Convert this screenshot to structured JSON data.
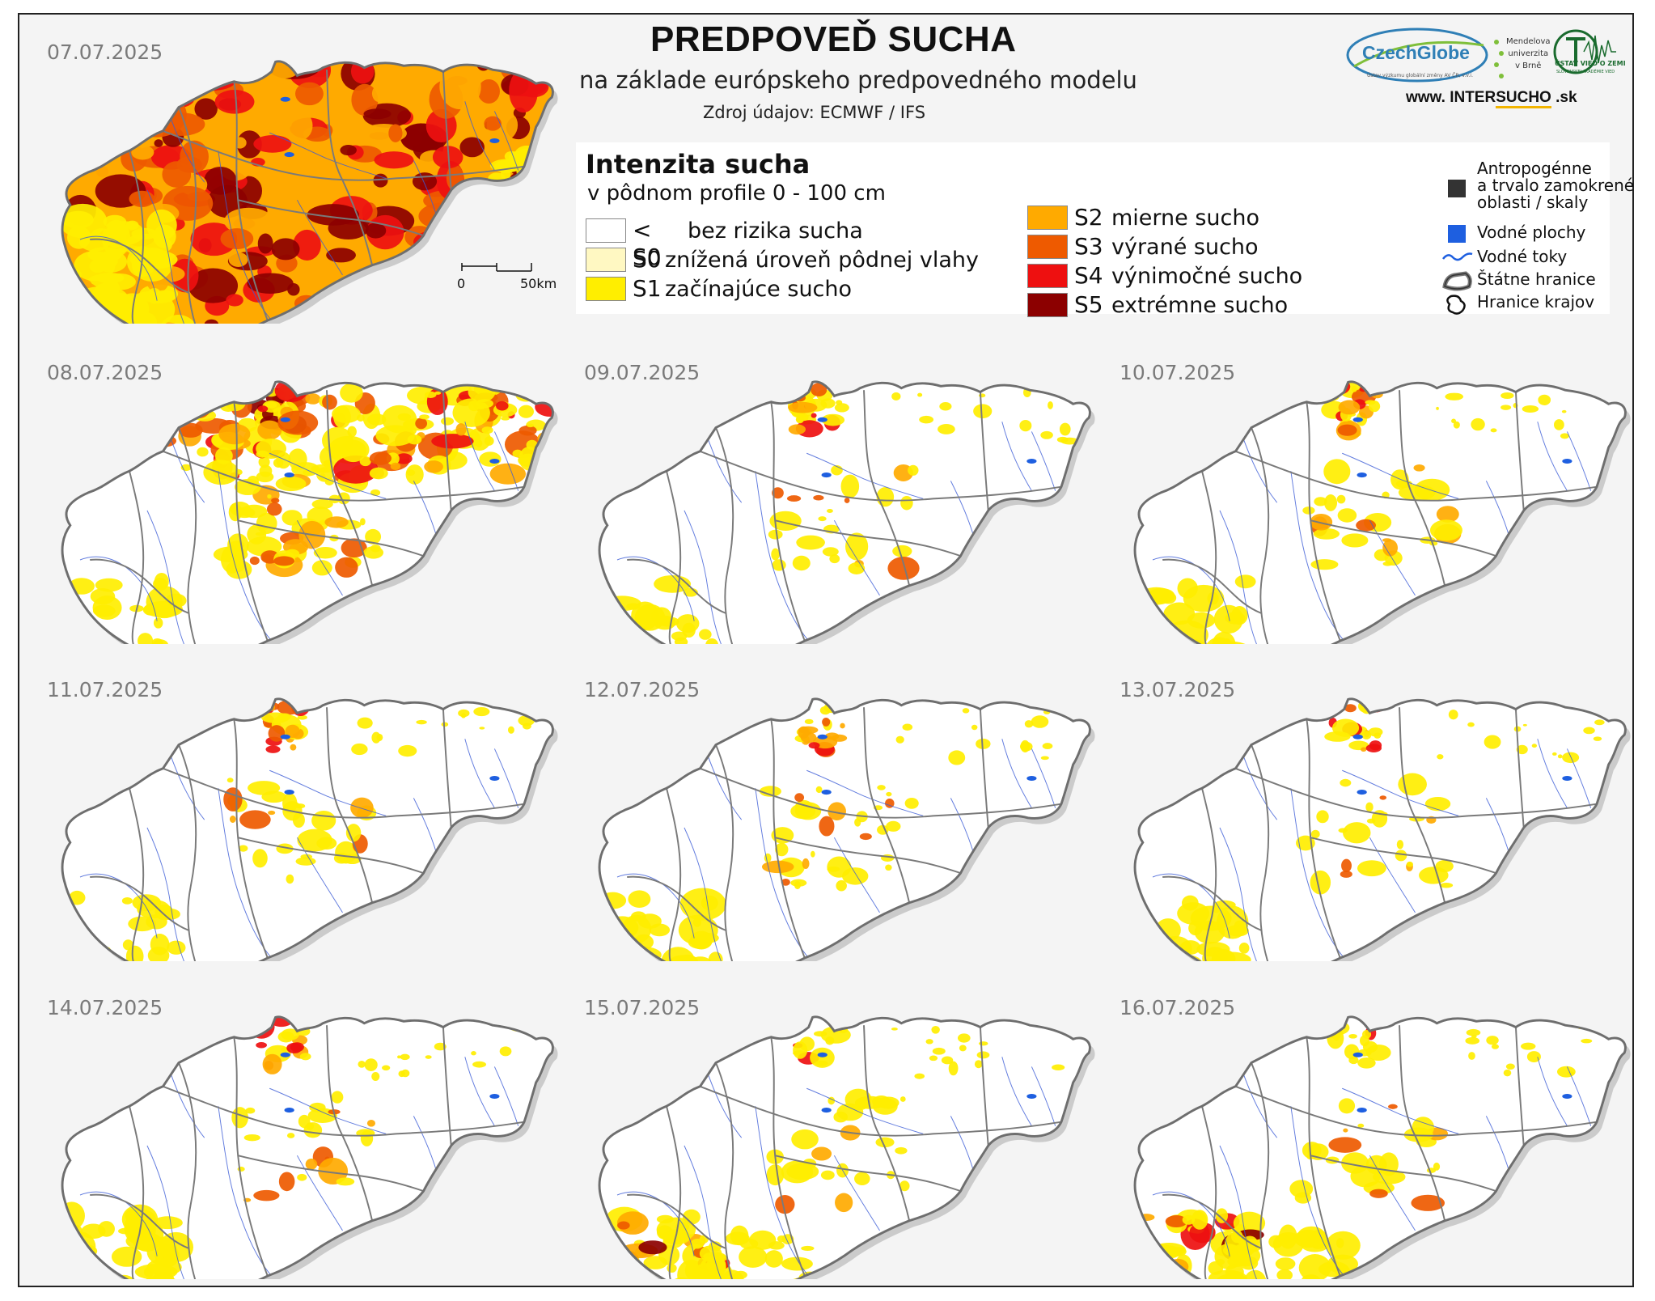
{
  "header": {
    "title": "PREDPOVEĎ SUCHA",
    "subtitle": "na základe európskeho predpovedného modelu",
    "source": "Zdroj údajov: ECMWF / IFS"
  },
  "logos": {
    "czechglobe": "CzechGlobe",
    "czechglobe_sub": "Ústav výzkumu globální změny AV ČR, v.v.i.",
    "mendel": "Mendelova\nuniverzita\nv Brně",
    "uvz": "ÚSTAV VIED O ZEMI",
    "uvz_sub": "SLOVENSKEJ AKADÉMIE VIED",
    "website_prefix": "www. INTER",
    "website_hl": "SUCHO",
    "website_suffix": " .sk"
  },
  "legend": {
    "heading": "Intenzita sucha",
    "sub": "v pôdnom profile 0 - 100 cm",
    "classes": [
      {
        "code": "< S0",
        "label": "bez rizika sucha",
        "color": "#ffffff"
      },
      {
        "code": "S0",
        "label": "znížená úroveň pôdnej vlahy",
        "color": "#fff8c2"
      },
      {
        "code": "S1",
        "label": "začínajúce sucho",
        "color": "#ffee00"
      },
      {
        "code": "S2",
        "label": "mierne sucho",
        "color": "#ffaa00"
      },
      {
        "code": "S3",
        "label": "výrané sucho",
        "color": "#ee5a00"
      },
      {
        "code": "S4",
        "label": "výnimočné sucho",
        "color": "#ee1010"
      },
      {
        "code": "S5",
        "label": "extrémne sucho",
        "color": "#8c0000"
      }
    ],
    "aux": [
      {
        "label": "Antropogénne\na trvalo zamokrené\noblasti / skaly",
        "color": "#333333",
        "icon": "dark-square-icon"
      },
      {
        "label": "Vodné plochy",
        "color": "#1e5fe0",
        "icon": "water-square-icon"
      },
      {
        "label": "Vodné toky",
        "color": "#1e5fe0",
        "icon": "river-line-icon"
      },
      {
        "label": "Štátne hranice",
        "color": "#777777",
        "icon": "state-border-icon"
      },
      {
        "label": "Hranice krajov",
        "color": "#111111",
        "icon": "region-border-icon"
      }
    ]
  },
  "scale": {
    "start": "0",
    "end": "50km"
  },
  "maps": [
    {
      "date": "07.07.2025",
      "severity": 0.95,
      "north": 0.95,
      "southwest": 0.55
    },
    {
      "date": "08.07.2025",
      "severity": 0.55,
      "north": 0.8,
      "southwest": 0.35
    },
    {
      "date": "09.07.2025",
      "severity": 0.22,
      "north": 0.55,
      "southwest": 0.3
    },
    {
      "date": "10.07.2025",
      "severity": 0.24,
      "north": 0.58,
      "southwest": 0.4
    },
    {
      "date": "11.07.2025",
      "severity": 0.24,
      "north": 0.5,
      "southwest": 0.32
    },
    {
      "date": "12.07.2025",
      "severity": 0.28,
      "north": 0.5,
      "southwest": 0.45
    },
    {
      "date": "13.07.2025",
      "severity": 0.22,
      "north": 0.45,
      "southwest": 0.5
    },
    {
      "date": "14.07.2025",
      "severity": 0.2,
      "north": 0.4,
      "southwest": 0.55
    },
    {
      "date": "15.07.2025",
      "severity": 0.22,
      "north": 0.35,
      "southwest": 0.65
    },
    {
      "date": "16.07.2025",
      "severity": 0.22,
      "north": 0.35,
      "southwest": 0.75
    }
  ]
}
